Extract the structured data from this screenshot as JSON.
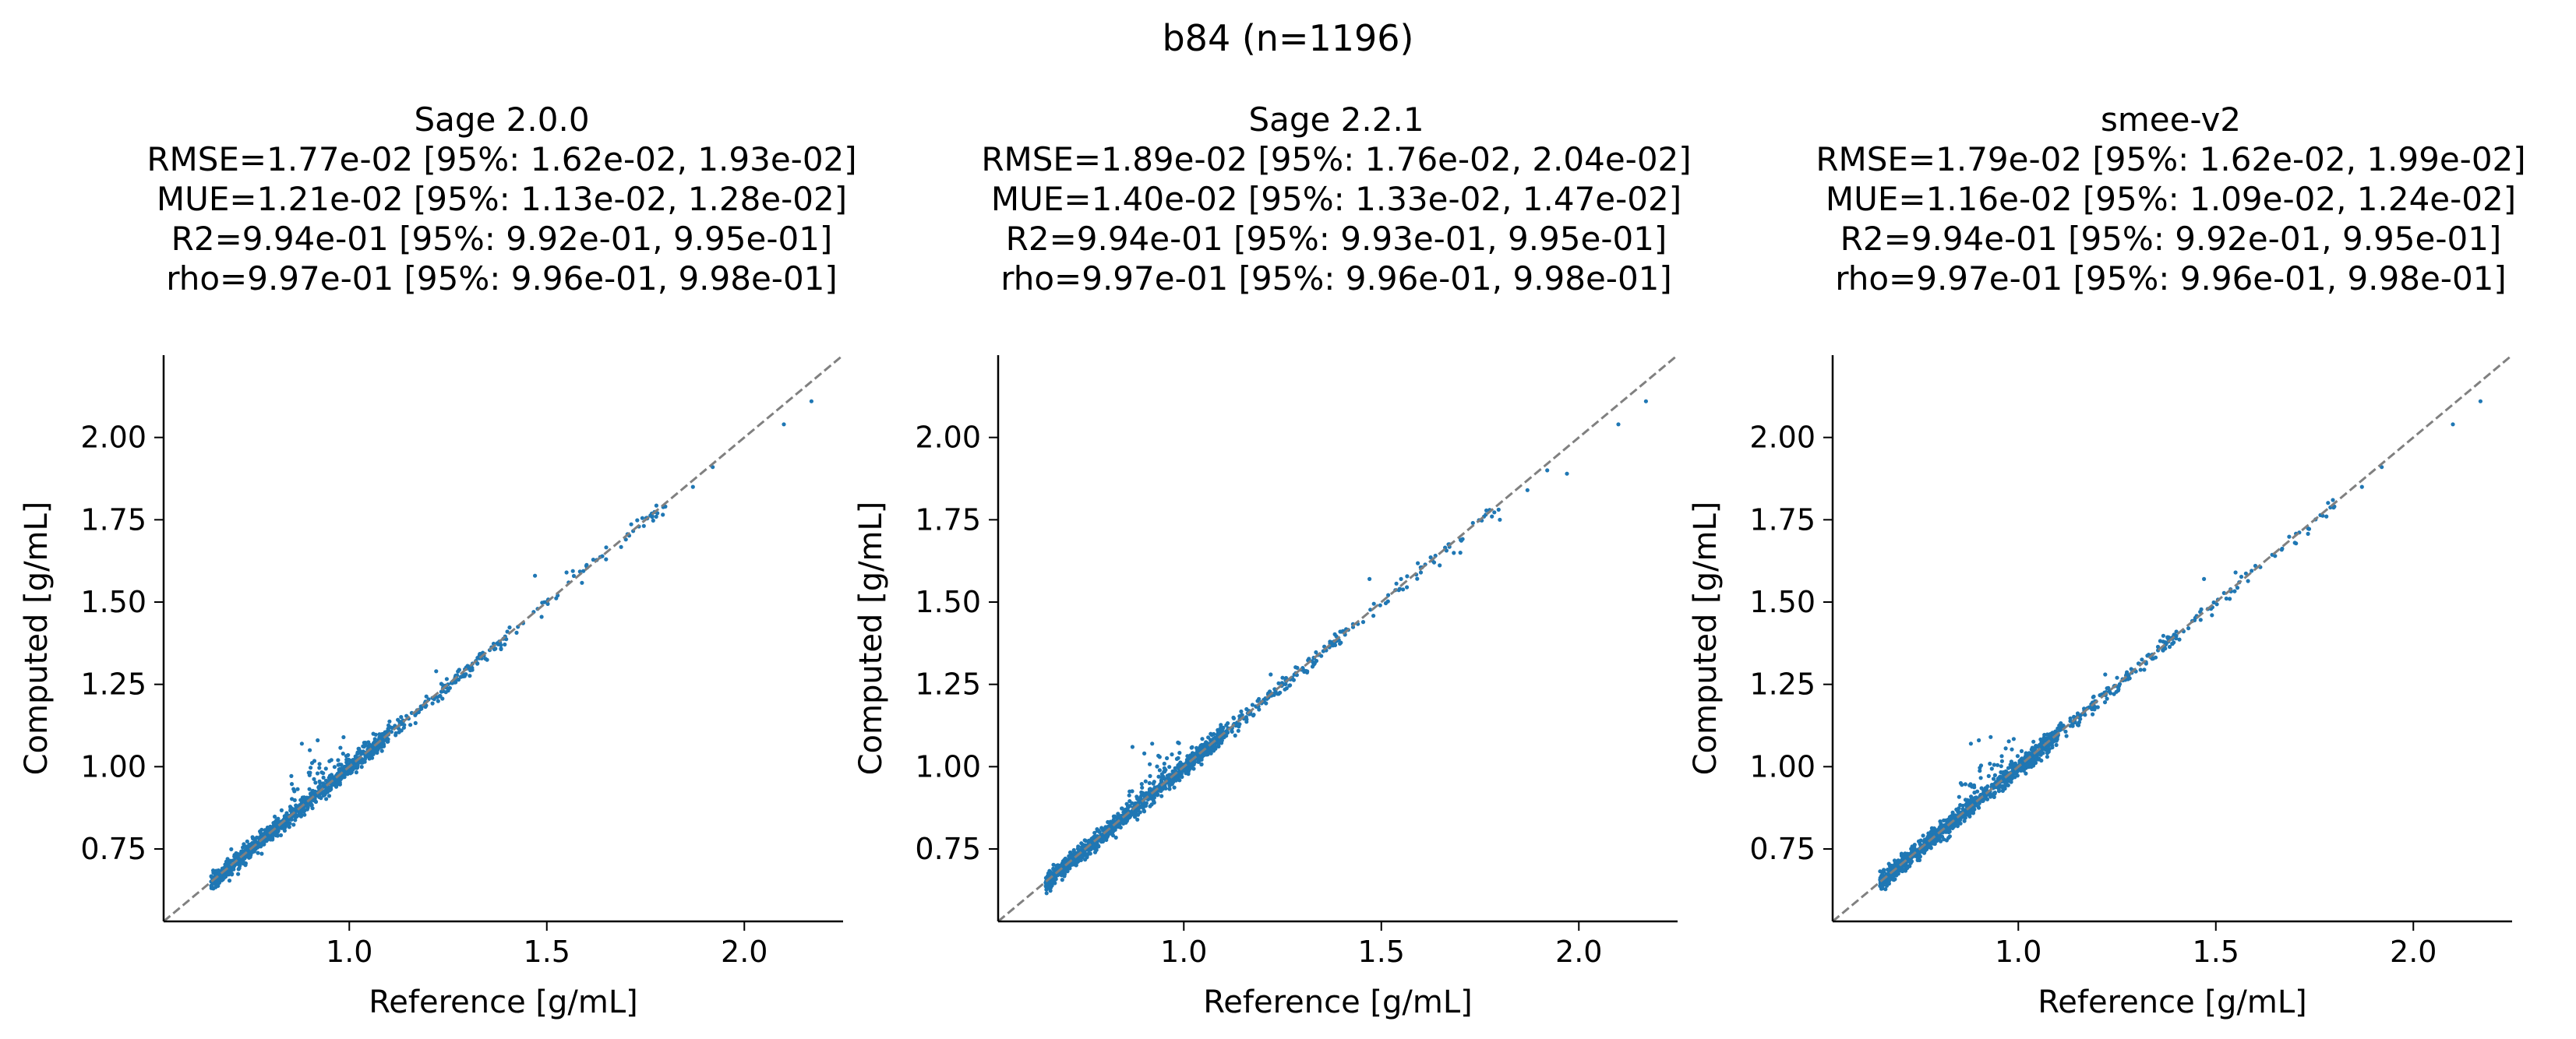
{
  "suptitle": "b84 (n=1196)",
  "chart_data": [
    {
      "type": "scatter",
      "title": "Sage 2.0.0",
      "stats": [
        "RMSE=1.77e-02 [95%: 1.62e-02, 1.93e-02]",
        "MUE=1.21e-02 [95%: 1.13e-02, 1.28e-02]",
        "R2=9.94e-01 [95%: 9.92e-01, 9.95e-01]",
        "rho=9.97e-01 [95%: 9.96e-01, 9.98e-01]"
      ],
      "xlabel": "Reference [g/mL]",
      "ylabel": "Computed [g/mL]",
      "xlim": [
        0.53,
        2.25
      ],
      "ylim": [
        0.53,
        2.25
      ],
      "xticks": [
        "1.0",
        "1.5",
        "2.0"
      ],
      "yticks": [
        "0.75",
        "1.00",
        "1.25",
        "1.50",
        "1.75",
        "2.00"
      ],
      "diagonal": true,
      "n_points": 1196,
      "color": "#1f77b4",
      "points_notable": [
        [
          1.47,
          1.58
        ],
        [
          1.55,
          1.59
        ],
        [
          1.6,
          1.61
        ],
        [
          1.65,
          1.63
        ],
        [
          1.7,
          1.69
        ],
        [
          1.78,
          1.77
        ],
        [
          1.8,
          1.79
        ],
        [
          1.87,
          1.85
        ],
        [
          1.92,
          1.91
        ],
        [
          2.1,
          2.04
        ],
        [
          2.17,
          2.11
        ],
        [
          0.88,
          1.07
        ],
        [
          0.9,
          1.05
        ],
        [
          0.92,
          1.08
        ],
        [
          1.25,
          1.25
        ],
        [
          1.22,
          1.29
        ],
        [
          1.33,
          1.34
        ],
        [
          1.4,
          1.41
        ]
      ]
    },
    {
      "type": "scatter",
      "title": "Sage 2.2.1",
      "stats": [
        "RMSE=1.89e-02 [95%: 1.76e-02, 2.04e-02]",
        "MUE=1.40e-02 [95%: 1.33e-02, 1.47e-02]",
        "R2=9.94e-01 [95%: 9.93e-01, 9.95e-01]",
        "rho=9.97e-01 [95%: 9.96e-01, 9.98e-01]"
      ],
      "xlabel": "Reference [g/mL]",
      "ylabel": "Computed [g/mL]",
      "xlim": [
        0.53,
        2.25
      ],
      "ylim": [
        0.53,
        2.25
      ],
      "xticks": [
        "1.0",
        "1.5",
        "2.0"
      ],
      "yticks": [
        "0.75",
        "1.00",
        "1.25",
        "1.50",
        "1.75",
        "2.00"
      ],
      "diagonal": true,
      "n_points": 1196,
      "color": "#1f77b4",
      "points_notable": [
        [
          1.47,
          1.57
        ],
        [
          1.55,
          1.57
        ],
        [
          1.6,
          1.59
        ],
        [
          1.7,
          1.65
        ],
        [
          1.78,
          1.76
        ],
        [
          1.8,
          1.75
        ],
        [
          1.87,
          1.84
        ],
        [
          1.92,
          1.9
        ],
        [
          1.97,
          1.89
        ],
        [
          2.1,
          2.04
        ],
        [
          2.17,
          2.11
        ],
        [
          0.87,
          1.06
        ],
        [
          0.9,
          1.04
        ],
        [
          0.92,
          1.07
        ],
        [
          1.25,
          1.27
        ],
        [
          1.22,
          1.28
        ],
        [
          1.33,
          1.33
        ],
        [
          1.4,
          1.41
        ]
      ]
    },
    {
      "type": "scatter",
      "title": "smee-v2",
      "stats": [
        "RMSE=1.79e-02 [95%: 1.62e-02, 1.99e-02]",
        "MUE=1.16e-02 [95%: 1.09e-02, 1.24e-02]",
        "R2=9.94e-01 [95%: 9.92e-01, 9.95e-01]",
        "rho=9.97e-01 [95%: 9.96e-01, 9.98e-01]"
      ],
      "xlabel": "Reference [g/mL]",
      "ylabel": "Computed [g/mL]",
      "xlim": [
        0.53,
        2.25
      ],
      "ylim": [
        0.53,
        2.25
      ],
      "xticks": [
        "1.0",
        "1.5",
        "2.0"
      ],
      "yticks": [
        "0.75",
        "1.00",
        "1.25",
        "1.50",
        "1.75",
        "2.00"
      ],
      "diagonal": true,
      "n_points": 1196,
      "color": "#1f77b4",
      "points_notable": [
        [
          1.47,
          1.57
        ],
        [
          1.55,
          1.59
        ],
        [
          1.6,
          1.61
        ],
        [
          1.65,
          1.64
        ],
        [
          1.7,
          1.68
        ],
        [
          1.78,
          1.76
        ],
        [
          1.8,
          1.79
        ],
        [
          1.87,
          1.85
        ],
        [
          1.92,
          1.91
        ],
        [
          2.1,
          2.04
        ],
        [
          2.17,
          2.11
        ],
        [
          0.88,
          1.07
        ],
        [
          0.9,
          1.08
        ],
        [
          0.93,
          1.09
        ],
        [
          1.25,
          1.27
        ],
        [
          1.22,
          1.28
        ],
        [
          1.33,
          1.34
        ],
        [
          1.4,
          1.41
        ]
      ]
    }
  ]
}
